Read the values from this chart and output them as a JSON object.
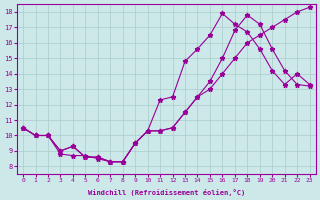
{
  "xlabel": "Windchill (Refroidissement éolien,°C)",
  "ylabel": "",
  "background_color": "#cce8e8",
  "line_color": "#990099",
  "grid_color": "#aacccc",
  "x_ticks": [
    0,
    1,
    2,
    3,
    4,
    5,
    6,
    7,
    8,
    9,
    10,
    11,
    12,
    13,
    14,
    15,
    16,
    17,
    18,
    19,
    20,
    21,
    22,
    23
  ],
  "y_ticks": [
    8,
    9,
    10,
    11,
    12,
    13,
    14,
    15,
    16,
    17,
    18
  ],
  "ylim": [
    7.5,
    18.5
  ],
  "xlim": [
    -0.5,
    23.5
  ],
  "line1_x": [
    0,
    1,
    2,
    3,
    4,
    5,
    6,
    7,
    8,
    9,
    10,
    11,
    12,
    13,
    14,
    15,
    16,
    17,
    18,
    19,
    20,
    21,
    22,
    23
  ],
  "line1_y": [
    10.5,
    10.0,
    10.0,
    8.8,
    8.7,
    8.7,
    8.5,
    8.3,
    8.3,
    9.5,
    10.3,
    12.3,
    12.5,
    14.8,
    15.6,
    16.5,
    17.9,
    17.2,
    16.7,
    15.6,
    14.2,
    13.3,
    14.0,
    13.3
  ],
  "line2_x": [
    0,
    1,
    2,
    3,
    4,
    5,
    6,
    7,
    8,
    9,
    10,
    11,
    12,
    13,
    14,
    15,
    16,
    17,
    18,
    19,
    20,
    21,
    22,
    23
  ],
  "line2_y": [
    10.5,
    10.0,
    10.0,
    9.0,
    9.3,
    8.6,
    8.6,
    8.3,
    8.3,
    9.5,
    10.3,
    10.3,
    10.5,
    11.5,
    12.5,
    13.5,
    15.0,
    16.8,
    17.8,
    17.2,
    15.6,
    14.2,
    13.3,
    13.2
  ],
  "line3_x": [
    0,
    1,
    2,
    3,
    4,
    5,
    6,
    7,
    8,
    9,
    10,
    11,
    12,
    13,
    14,
    15,
    16,
    17,
    18,
    19,
    20,
    21,
    22,
    23
  ],
  "line3_y": [
    10.5,
    10.0,
    10.0,
    9.0,
    9.3,
    8.6,
    8.6,
    8.3,
    8.3,
    9.5,
    10.3,
    10.3,
    10.5,
    11.5,
    12.5,
    13.0,
    14.0,
    15.0,
    16.0,
    16.5,
    17.0,
    17.5,
    18.0,
    18.3
  ]
}
